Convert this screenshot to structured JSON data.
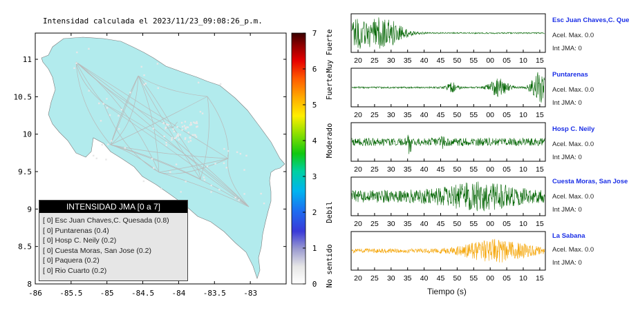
{
  "map": {
    "title": "Intensidad calculada el 2023/11/23_09:08:26_p.m.",
    "xticks": [
      "-86",
      "-85.5",
      "-85",
      "-84.5",
      "-84",
      "-83.5",
      "-83"
    ],
    "yticks": [
      "11",
      "10.5",
      "10",
      "9.5",
      "9",
      "8.5",
      "8"
    ],
    "xlim": [
      -86,
      -82.5
    ],
    "ylim": [
      8,
      11.35
    ],
    "land_color": "#b2ebed",
    "road_color": "#b9b9b9"
  },
  "colorbar": {
    "ticks": [
      "0",
      "1",
      "2",
      "3",
      "4",
      "5",
      "6",
      "7"
    ],
    "range": [
      0,
      7
    ],
    "category_labels": [
      "No sentido",
      "Debil",
      "Moderado",
      "Fuerte",
      "Muy Fuerte"
    ]
  },
  "legend": {
    "title": "INTENSIDAD JMA [0 a 7]",
    "items": [
      "[ 0]  Esc Juan Chaves,C. Quesada (0.8)",
      "[ 0]  Puntarenas (0.4)",
      "[ 0]  Hosp C. Neily (0.2)",
      "[ 0]  Cuesta Moras, San Jose (0.2)",
      "[ 0]  Paquera (0.2)",
      "[ 0]  Rio Cuarto (0.2)"
    ]
  },
  "waveforms": {
    "xlabel": "Tiempo (s)",
    "time_ticks": [
      "20",
      "25",
      "30",
      "35",
      "40",
      "45",
      "50",
      "55",
      "00",
      "05",
      "10",
      "15"
    ],
    "stations": [
      {
        "name": "Esc Juan Chaves,C. Quesada",
        "acel": "Acel. Max. 0.0",
        "int": "Int JMA: 0",
        "color": "#006400"
      },
      {
        "name": "Puntarenas",
        "acel": "Acel. Max. 0.0",
        "int": "Int JMA: 0",
        "color": "#006400"
      },
      {
        "name": "Hosp C. Neily",
        "acel": "Acel. Max. 0.0",
        "int": "Int JMA: 0",
        "color": "#006400"
      },
      {
        "name": "Cuesta Moras, San Jose",
        "acel": "Acel. Max. 0.0",
        "int": "Int JMA: 0",
        "color": "#006400"
      },
      {
        "name": "La Sabana",
        "acel": "Acel. Max. 0.0",
        "int": "Int JMA: 0",
        "color": "#f5a300"
      }
    ]
  },
  "chart_data": [
    {
      "type": "heatmap",
      "title": "Intensidad calculada el 2023/11/23_09:08:26_p.m.",
      "x_ticks": [
        -86,
        -85.5,
        -85,
        -84.5,
        -84,
        -83.5,
        -83
      ],
      "y_ticks": [
        11,
        10.5,
        10,
        9.5,
        9,
        8.5,
        8
      ],
      "colorbar_range": [
        0,
        7
      ],
      "colorbar_labels": [
        "No sentido",
        "Debil",
        "Moderado",
        "Fuerte",
        "Muy Fuerte"
      ],
      "uniform_value": 0,
      "legend_placement": "bottom-left"
    },
    {
      "type": "line",
      "xlabel": "Tiempo (s)",
      "x_ticks": [
        "20",
        "25",
        "30",
        "35",
        "40",
        "45",
        "50",
        "55",
        "00",
        "05",
        "10",
        "15"
      ],
      "series": [
        {
          "name": "Esc Juan Chaves,C. Quesada",
          "peak_acceleration": 0.0,
          "intensity": 0
        },
        {
          "name": "Puntarenas",
          "peak_acceleration": 0.0,
          "intensity": 0
        },
        {
          "name": "Hosp C. Neily",
          "peak_acceleration": 0.0,
          "intensity": 0
        },
        {
          "name": "Cuesta Moras, San Jose",
          "peak_acceleration": 0.0,
          "intensity": 0
        },
        {
          "name": "La Sabana",
          "peak_acceleration": 0.0,
          "intensity": 0
        }
      ]
    }
  ]
}
